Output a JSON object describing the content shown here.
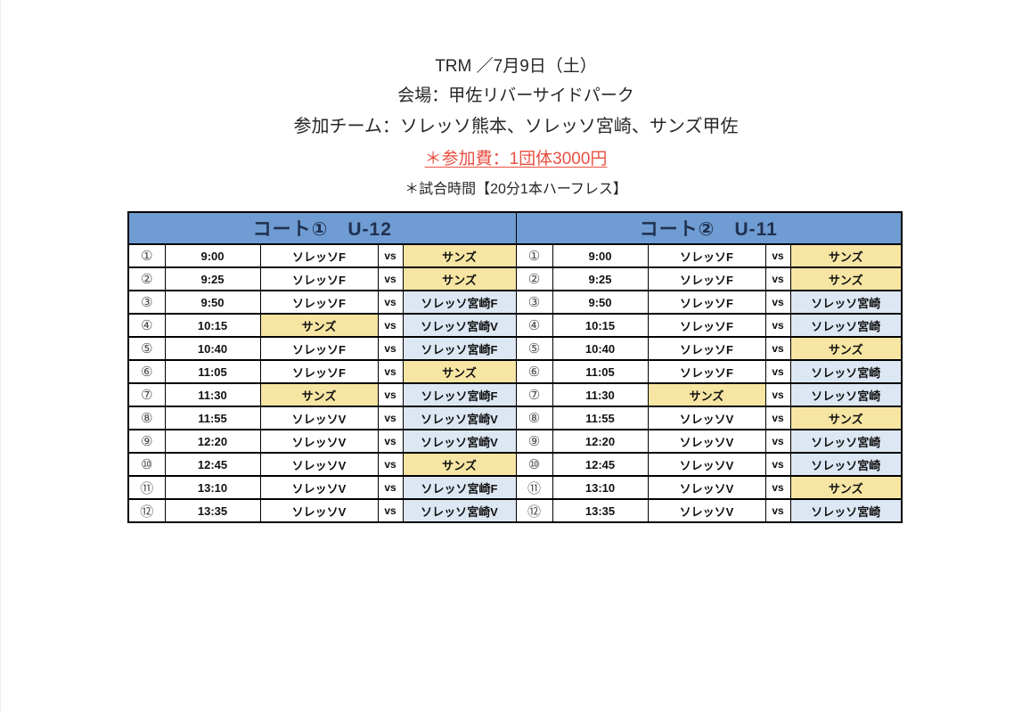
{
  "page_header": {
    "title_line": "TRM ／7月9日（土）",
    "venue_line": "会場：甲佐リバーサイドパーク",
    "teams_line": "参加チーム：ソレッソ熊本、ソレッソ宮崎、サンズ甲佐",
    "fee_line": "＊参加費：1団体3000円",
    "duration_line": "＊試合時間【20分1本ハーフレス】"
  },
  "colors": {
    "header_blue": "#6F9CD2",
    "highlight_yellow": "#F7E5A3",
    "highlight_blue": "#DCE7F3",
    "fee_red": "#E85042"
  },
  "tables": [
    {
      "title": "コート①　U-12",
      "rows": [
        {
          "no": "①",
          "time": "9:00",
          "home": "ソレッソF",
          "vs": "vs",
          "away": "サンズ",
          "home_hl": "none",
          "away_hl": "yellow"
        },
        {
          "no": "②",
          "time": "9:25",
          "home": "ソレッソF",
          "vs": "vs",
          "away": "サンズ",
          "home_hl": "none",
          "away_hl": "yellow"
        },
        {
          "no": "③",
          "time": "9:50",
          "home": "ソレッソF",
          "vs": "vs",
          "away": "ソレッソ宮崎F",
          "home_hl": "none",
          "away_hl": "blue"
        },
        {
          "no": "④",
          "time": "10:15",
          "home": "サンズ",
          "vs": "vs",
          "away": "ソレッソ宮崎V",
          "home_hl": "yellow",
          "away_hl": "blue"
        },
        {
          "no": "⑤",
          "time": "10:40",
          "home": "ソレッソF",
          "vs": "vs",
          "away": "ソレッソ宮崎F",
          "home_hl": "none",
          "away_hl": "blue"
        },
        {
          "no": "⑥",
          "time": "11:05",
          "home": "ソレッソF",
          "vs": "vs",
          "away": "サンズ",
          "home_hl": "none",
          "away_hl": "yellow"
        },
        {
          "no": "⑦",
          "time": "11:30",
          "home": "サンズ",
          "vs": "vs",
          "away": "ソレッソ宮崎F",
          "home_hl": "yellow",
          "away_hl": "blue"
        },
        {
          "no": "⑧",
          "time": "11:55",
          "home": "ソレッソV",
          "vs": "vs",
          "away": "ソレッソ宮崎V",
          "home_hl": "none",
          "away_hl": "blue"
        },
        {
          "no": "⑨",
          "time": "12:20",
          "home": "ソレッソV",
          "vs": "vs",
          "away": "ソレッソ宮崎V",
          "home_hl": "none",
          "away_hl": "blue"
        },
        {
          "no": "⑩",
          "time": "12:45",
          "home": "ソレッソV",
          "vs": "vs",
          "away": "サンズ",
          "home_hl": "none",
          "away_hl": "yellow"
        },
        {
          "no": "⑪",
          "time": "13:10",
          "home": "ソレッソV",
          "vs": "vs",
          "away": "ソレッソ宮崎F",
          "home_hl": "none",
          "away_hl": "blue"
        },
        {
          "no": "⑫",
          "time": "13:35",
          "home": "ソレッソV",
          "vs": "vs",
          "away": "ソレッソ宮崎V",
          "home_hl": "none",
          "away_hl": "blue"
        }
      ]
    },
    {
      "title": "コート②　U-11",
      "rows": [
        {
          "no": "①",
          "time": "9:00",
          "home": "ソレッソF",
          "vs": "vs",
          "away": "サンズ",
          "home_hl": "none",
          "away_hl": "yellow"
        },
        {
          "no": "②",
          "time": "9:25",
          "home": "ソレッソF",
          "vs": "vs",
          "away": "サンズ",
          "home_hl": "none",
          "away_hl": "yellow"
        },
        {
          "no": "③",
          "time": "9:50",
          "home": "ソレッソF",
          "vs": "vs",
          "away": "ソレッソ宮崎",
          "home_hl": "none",
          "away_hl": "blue"
        },
        {
          "no": "④",
          "time": "10:15",
          "home": "ソレッソF",
          "vs": "vs",
          "away": "ソレッソ宮崎",
          "home_hl": "none",
          "away_hl": "blue"
        },
        {
          "no": "⑤",
          "time": "10:40",
          "home": "ソレッソF",
          "vs": "vs",
          "away": "サンズ",
          "home_hl": "none",
          "away_hl": "yellow"
        },
        {
          "no": "⑥",
          "time": "11:05",
          "home": "ソレッソF",
          "vs": "vs",
          "away": "ソレッソ宮崎",
          "home_hl": "none",
          "away_hl": "blue"
        },
        {
          "no": "⑦",
          "time": "11:30",
          "home": "サンズ",
          "vs": "vs",
          "away": "ソレッソ宮崎",
          "home_hl": "yellow",
          "away_hl": "blue"
        },
        {
          "no": "⑧",
          "time": "11:55",
          "home": "ソレッソV",
          "vs": "vs",
          "away": "サンズ",
          "home_hl": "none",
          "away_hl": "yellow"
        },
        {
          "no": "⑨",
          "time": "12:20",
          "home": "ソレッソV",
          "vs": "vs",
          "away": "ソレッソ宮崎",
          "home_hl": "none",
          "away_hl": "blue"
        },
        {
          "no": "⑩",
          "time": "12:45",
          "home": "ソレッソV",
          "vs": "vs",
          "away": "ソレッソ宮崎",
          "home_hl": "none",
          "away_hl": "blue"
        },
        {
          "no": "⑪",
          "time": "13:10",
          "home": "ソレッソV",
          "vs": "vs",
          "away": "サンズ",
          "home_hl": "none",
          "away_hl": "yellow"
        },
        {
          "no": "⑫",
          "time": "13:35",
          "home": "ソレッソV",
          "vs": "vs",
          "away": "ソレッソ宮崎",
          "home_hl": "none",
          "away_hl": "blue"
        }
      ]
    }
  ]
}
